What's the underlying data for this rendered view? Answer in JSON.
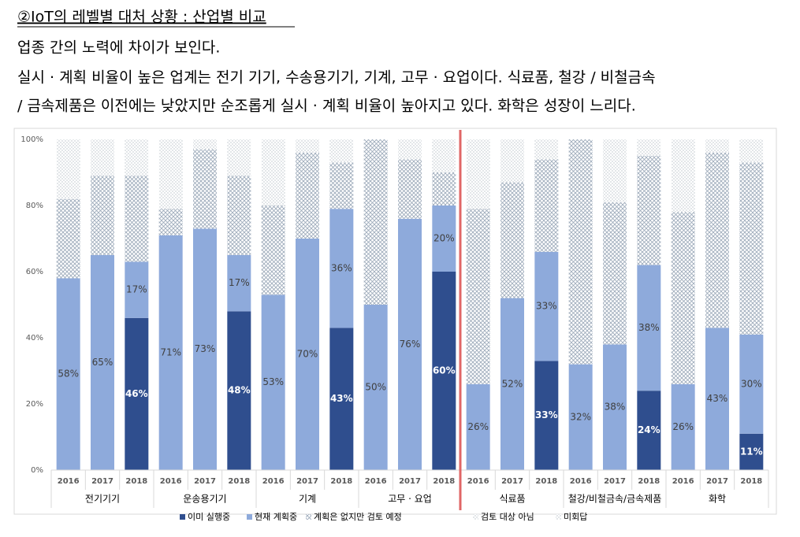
{
  "header": {
    "title": "②IoT의 레벨별 대처 상황 : 산업별 비교",
    "lines": [
      "업종 간의 노력에 차이가 보인다.",
      "실시 · 계획 비율이 높은 업계는 전기 기기, 수송용기기, 기계, 고무 · 요업이다. 식료품, 철강 / 비철금속",
      "/ 금속제품은 이전에는 낮았지만 순조롭게 실시 · 계획 비율이 높아지고 있다. 화학은 성장이 느리다."
    ]
  },
  "chart_data": {
    "type": "stacked_bar",
    "categories": [
      "2016",
      "2017",
      "2018",
      "2016",
      "2017",
      "2018",
      "2016",
      "2017",
      "2018",
      "2016",
      "2017",
      "2018",
      "2016",
      "2017",
      "2018",
      "2016",
      "2017",
      "2018",
      "2016",
      "2017",
      "2018"
    ],
    "groups": [
      "전기기기",
      "운송용기기",
      "기계",
      "고무 · 요업",
      "식료품",
      "철강/비철금속/금속제품",
      "화학"
    ],
    "ylim": [
      0,
      100
    ],
    "yticks": [
      {
        "value": 0,
        "label": "0%"
      },
      {
        "value": 20,
        "label": "20%"
      },
      {
        "value": 40,
        "label": "40%"
      },
      {
        "value": 60,
        "label": "60%"
      },
      {
        "value": 80,
        "label": "80%"
      },
      {
        "value": 100,
        "label": "100%"
      }
    ],
    "series": [
      {
        "name": "이미 실행중",
        "color": "#2f4e8e",
        "pattern": "solid",
        "values": [
          0,
          0,
          46,
          0,
          0,
          48,
          0,
          0,
          43,
          0,
          0,
          60,
          0,
          0,
          33,
          0,
          0,
          24,
          0,
          0,
          11
        ],
        "value_labels": [
          null,
          null,
          "46%",
          null,
          null,
          "48%",
          null,
          null,
          "43%",
          null,
          null,
          "60%",
          null,
          null,
          "33%",
          null,
          null,
          "24%",
          null,
          null,
          "11%"
        ]
      },
      {
        "name": "현재 계획중",
        "color": "#8eaadb",
        "pattern": "solid",
        "values": [
          58,
          65,
          17,
          71,
          73,
          17,
          53,
          70,
          36,
          50,
          76,
          20,
          26,
          52,
          33,
          32,
          38,
          38,
          26,
          43,
          30
        ],
        "value_labels": [
          "58%",
          "65%",
          "17%",
          "71%",
          "73%",
          "17%",
          "53%",
          "70%",
          "36%",
          "50%",
          "76%",
          "20%",
          "26%",
          "52%",
          "33%",
          "32%",
          "38%",
          "38%",
          "26%",
          "43%",
          "30%"
        ]
      },
      {
        "name": "계획은 없지만 검토 예정",
        "color": "#9aa8b8",
        "pattern": "crosshatch",
        "values": [
          24,
          24,
          26,
          8,
          24,
          24,
          27,
          26,
          14,
          50,
          18,
          10,
          53,
          35,
          28,
          68,
          43,
          33,
          52,
          53,
          52
        ]
      },
      {
        "name": "검토 대상 아님",
        "color": "#b8c0c8",
        "pattern": "dots",
        "values": [
          18,
          11,
          11,
          21,
          3,
          11,
          20,
          4,
          7,
          0,
          6,
          10,
          21,
          13,
          6,
          0,
          19,
          5,
          22,
          4,
          7
        ]
      },
      {
        "name": "미회답",
        "color": "#d0d0d0",
        "pattern": "dots",
        "values": [
          0,
          0,
          0,
          0,
          0,
          0,
          0,
          0,
          0,
          0,
          0,
          0,
          0,
          0,
          0,
          0,
          0,
          0,
          0,
          0,
          0
        ]
      }
    ]
  }
}
